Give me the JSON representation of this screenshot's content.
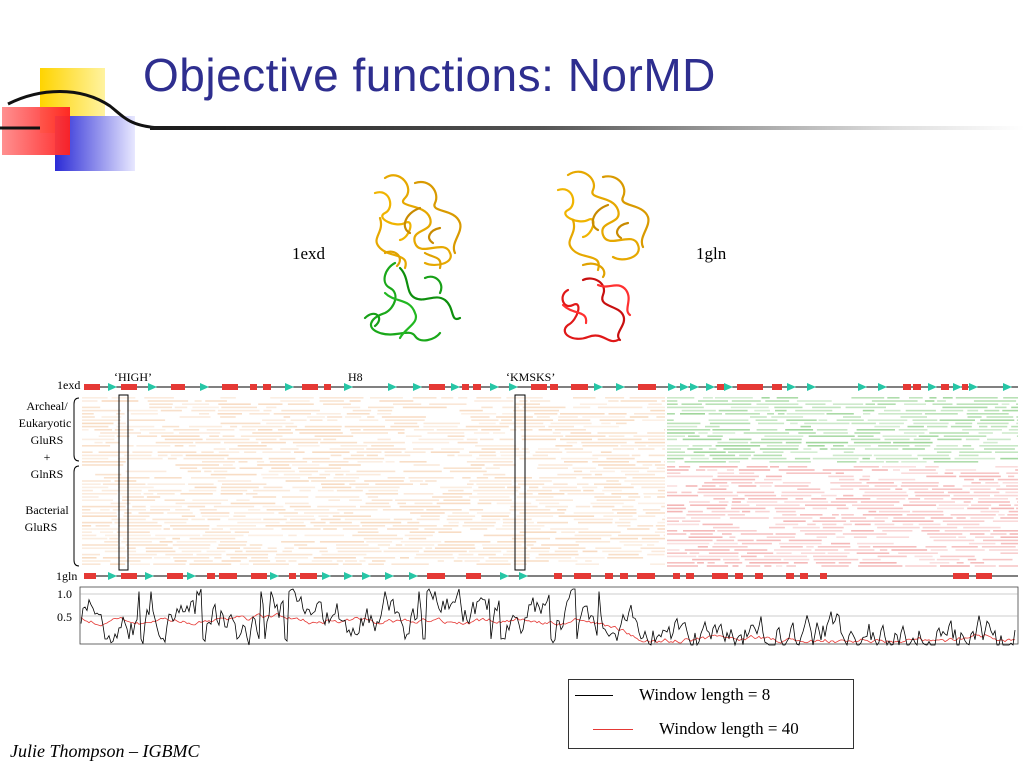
{
  "slide": {
    "title": "Objective functions: NorMD",
    "footer": "Julie Thompson – IGBMC"
  },
  "structures": {
    "left_label": "1exd",
    "right_label": "1gln"
  },
  "alignment": {
    "top_seq_label": "1exd",
    "bottom_seq_label": "1gln",
    "motif_labels": [
      "‘HIGH’",
      "H8",
      "‘KMSKS’"
    ],
    "group_archeal_lines": [
      "Archeal/",
      "Eukaryotic",
      "GluRS",
      "+",
      "GlnRS"
    ],
    "group_bacterial_lines": [
      "Bacterial",
      "GluRS"
    ],
    "y_tick_top": "1.0",
    "y_tick_mid": "0.5",
    "colors": {
      "helix": "#e53935",
      "strand": "#26c6a6",
      "archeal_block": "#8fcf8a",
      "bacterial_block": "#f2a8a8",
      "conserved_block": "#f6d5b8",
      "window8": "#000000",
      "window40": "#e53935"
    }
  },
  "legend": {
    "window8_label": "Window length = 8",
    "window40_label": "Window length = 40"
  }
}
